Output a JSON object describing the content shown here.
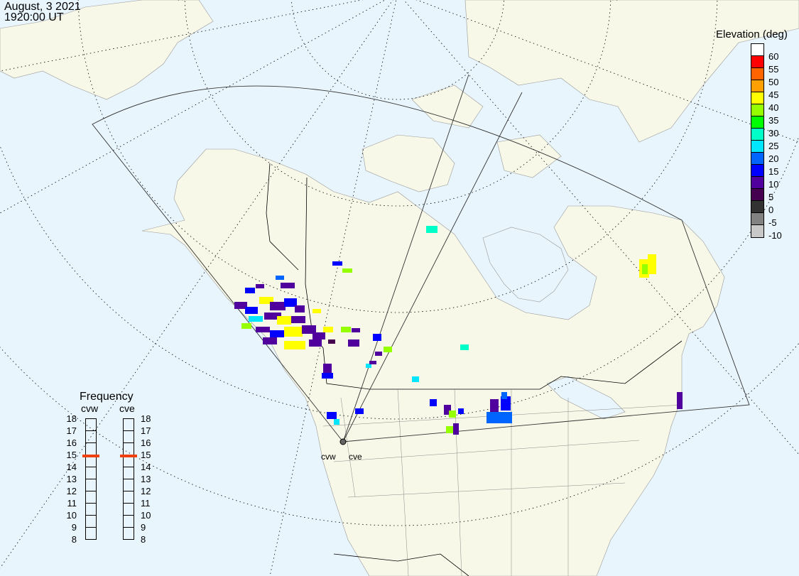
{
  "header": {
    "date": "August, 3 2021",
    "time": "1920:00 UT"
  },
  "elevation_legend": {
    "title": "Elevation (deg)",
    "bins": [
      {
        "label": "60",
        "color": "#ffffff"
      },
      {
        "label": "55",
        "color": "#ff0000"
      },
      {
        "label": "50",
        "color": "#ff6400"
      },
      {
        "label": "45",
        "color": "#ffa000"
      },
      {
        "label": "40",
        "color": "#ffff00"
      },
      {
        "label": "35",
        "color": "#96ff00"
      },
      {
        "label": "30",
        "color": "#00ff00"
      },
      {
        "label": "25",
        "color": "#00ffc8"
      },
      {
        "label": "20",
        "color": "#00e6ff"
      },
      {
        "label": "15",
        "color": "#0064ff"
      },
      {
        "label": "10",
        "color": "#0000ff"
      },
      {
        "label": "5",
        "color": "#50009c"
      },
      {
        "label": "0",
        "color": "#460050"
      },
      {
        "label": "-5",
        "color": "#323232"
      },
      {
        "label": "-10",
        "color": "#828282"
      },
      {
        "label": "",
        "color": "#c8c8c8"
      }
    ]
  },
  "frequency": {
    "title": "Frequency",
    "ticks": [
      "18",
      "17",
      "16",
      "15",
      "14",
      "13",
      "12",
      "11",
      "10",
      "9",
      "8"
    ],
    "radars": [
      {
        "name": "cvw",
        "mhz": 14.9
      },
      {
        "name": "cve",
        "mhz": 14.9
      }
    ],
    "marker_color": "#f04010"
  },
  "sites": {
    "west": "cvw",
    "east": "cve"
  },
  "colors": {
    "ocean": "#e8f5fd",
    "land": "#f8f8e8"
  }
}
